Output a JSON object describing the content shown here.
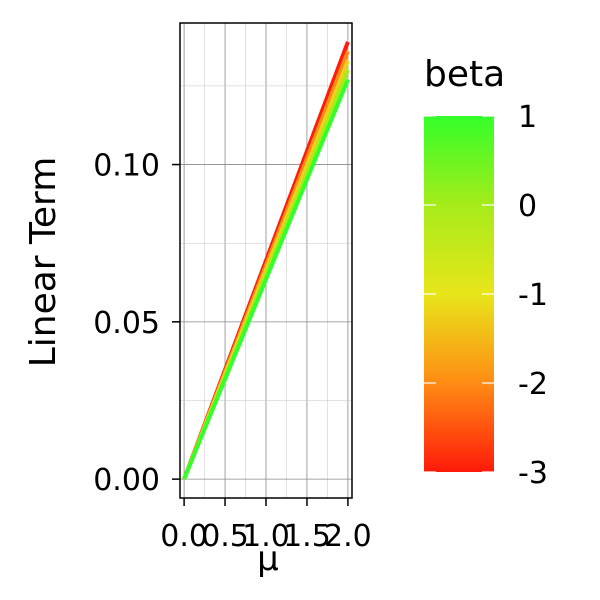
{
  "chart_data": {
    "type": "line",
    "xlabel": "μ",
    "ylabel": "Linear Term",
    "xlim": [
      -0.05,
      2.05
    ],
    "ylim": [
      -0.006,
      0.145
    ],
    "x_ticks": [
      0.0,
      0.5,
      1.0,
      1.5,
      2.0
    ],
    "x_tick_labels": [
      "0.0",
      "0.5",
      "1.0",
      "1.5",
      "2.0"
    ],
    "y_ticks": [
      0.0,
      0.05,
      0.1
    ],
    "y_tick_labels": [
      "0.00",
      "0.05",
      "0.10"
    ],
    "grid": true,
    "legend": {
      "title": "beta",
      "type": "colorbar",
      "placement": "right",
      "ticks": [
        1,
        0,
        -1,
        -2,
        -3
      ],
      "tick_labels": [
        "1",
        "0",
        "-1",
        "-2",
        "-3"
      ],
      "range": [
        -3,
        1
      ],
      "colors": [
        "#ff1a0a",
        "#ff8c14",
        "#e8e61a",
        "#a6eb1a",
        "#33ff2a"
      ]
    },
    "series": [
      {
        "beta": -3,
        "color": "#ff1a0a",
        "x": [
          0,
          2
        ],
        "y": [
          0,
          0.139
        ]
      },
      {
        "beta": -2,
        "color": "#ff8c14",
        "x": [
          0,
          2
        ],
        "y": [
          0,
          0.136
        ]
      },
      {
        "beta": -1,
        "color": "#ecd21a",
        "x": [
          0,
          2
        ],
        "y": [
          0,
          0.133
        ]
      },
      {
        "beta": 0,
        "color": "#a6eb1a",
        "x": [
          0,
          2
        ],
        "y": [
          0,
          0.13
        ]
      },
      {
        "beta": 1,
        "color": "#33ff2a",
        "x": [
          0,
          2
        ],
        "y": [
          0,
          0.127
        ]
      }
    ]
  }
}
